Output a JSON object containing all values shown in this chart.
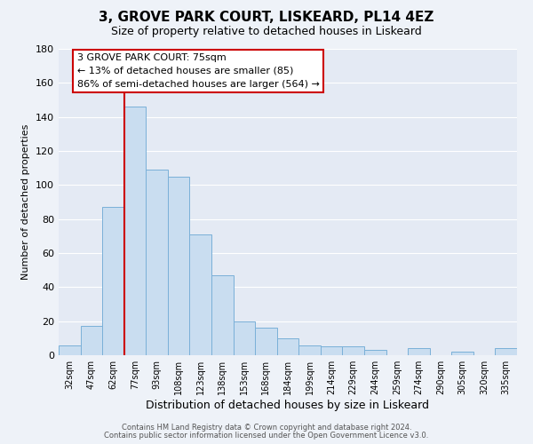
{
  "title": "3, GROVE PARK COURT, LISKEARD, PL14 4EZ",
  "subtitle": "Size of property relative to detached houses in Liskeard",
  "xlabel": "Distribution of detached houses by size in Liskeard",
  "ylabel": "Number of detached properties",
  "bar_labels": [
    "32sqm",
    "47sqm",
    "62sqm",
    "77sqm",
    "93sqm",
    "108sqm",
    "123sqm",
    "138sqm",
    "153sqm",
    "168sqm",
    "184sqm",
    "199sqm",
    "214sqm",
    "229sqm",
    "244sqm",
    "259sqm",
    "274sqm",
    "290sqm",
    "305sqm",
    "320sqm",
    "335sqm"
  ],
  "bar_values": [
    6,
    17,
    87,
    146,
    109,
    105,
    71,
    47,
    20,
    16,
    10,
    6,
    5,
    5,
    3,
    0,
    4,
    0,
    2,
    0,
    4
  ],
  "bar_color": "#c9ddf0",
  "bar_edge_color": "#7ab0d8",
  "ylim": [
    0,
    180
  ],
  "yticks": [
    0,
    20,
    40,
    60,
    80,
    100,
    120,
    140,
    160,
    180
  ],
  "vline_color": "#cc0000",
  "annotation_title": "3 GROVE PARK COURT: 75sqm",
  "annotation_line1": "← 13% of detached houses are smaller (85)",
  "annotation_line2": "86% of semi-detached houses are larger (564) →",
  "annotation_box_color": "#ffffff",
  "annotation_box_edge": "#cc0000",
  "footer_line1": "Contains HM Land Registry data © Crown copyright and database right 2024.",
  "footer_line2": "Contains public sector information licensed under the Open Government Licence v3.0.",
  "background_color": "#eef2f8",
  "plot_bg_color": "#e4eaf4",
  "grid_color": "#ffffff"
}
